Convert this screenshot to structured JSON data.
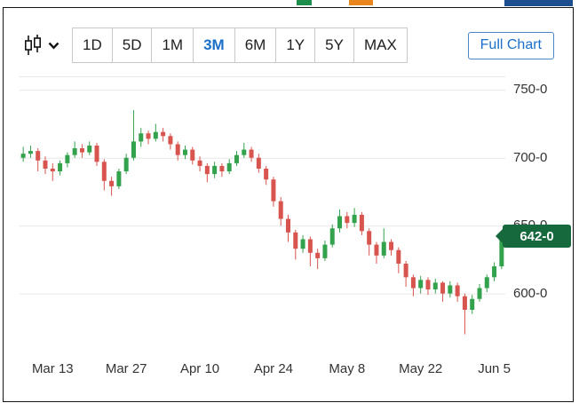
{
  "colors": {
    "up_candle": "#33a24c",
    "down_candle": "#d8544e",
    "accent_blue": "#1a6fc9",
    "badge_bg": "#15693d",
    "grid": "#e7e7e7",
    "axis_text": "#333333",
    "frame_border": "#141414",
    "button_border": "#c8c8c8"
  },
  "icons": {
    "chart_type": "candlestick-icon",
    "dropdown": "chevron-down-icon"
  },
  "cropped_fragments": [
    {
      "name": "green-fragment",
      "color": "#1e8e4c"
    },
    {
      "name": "orange-fragment",
      "color": "#e8861d"
    },
    {
      "name": "blue-fragment",
      "color": "#1d4f90"
    }
  ],
  "toolbar": {
    "ranges": [
      "1D",
      "5D",
      "1M",
      "3M",
      "6M",
      "1Y",
      "5Y",
      "MAX"
    ],
    "selected_range": "3M",
    "full_chart_label": "Full Chart"
  },
  "chart_data": {
    "type": "candlestick",
    "title": "",
    "xlabel": "",
    "ylabel": "",
    "grid": true,
    "legend": false,
    "x_ticks": [
      "Mar 13",
      "Mar 27",
      "Apr 10",
      "Apr 24",
      "May 8",
      "May 22",
      "Jun 5"
    ],
    "x_tick_indices": [
      4,
      14,
      24,
      34,
      44,
      54,
      64
    ],
    "y_ticks": [
      {
        "label": "750-0",
        "value": 750
      },
      {
        "label": "700-0",
        "value": 700
      },
      {
        "label": "650-0",
        "value": 650
      },
      {
        "label": "600-0",
        "value": 600
      }
    ],
    "ylim": [
      554,
      760
    ],
    "last_price": {
      "label": "642-0",
      "value": 642
    },
    "ohlc": [
      [
        700,
        708,
        697,
        703
      ],
      [
        703,
        709,
        700,
        705
      ],
      [
        705,
        707,
        690,
        698
      ],
      [
        698,
        701,
        688,
        692
      ],
      [
        692,
        696,
        683,
        690
      ],
      [
        690,
        698,
        687,
        696
      ],
      [
        696,
        704,
        693,
        702
      ],
      [
        702,
        712,
        700,
        707
      ],
      [
        707,
        710,
        700,
        704
      ],
      [
        704,
        712,
        702,
        709
      ],
      [
        709,
        711,
        694,
        697
      ],
      [
        697,
        699,
        676,
        683
      ],
      [
        683,
        686,
        672,
        679
      ],
      [
        679,
        692,
        677,
        690
      ],
      [
        690,
        703,
        688,
        700
      ],
      [
        700,
        735,
        698,
        712
      ],
      [
        712,
        722,
        708,
        718
      ],
      [
        718,
        720,
        710,
        714
      ],
      [
        714,
        725,
        712,
        719
      ],
      [
        719,
        722,
        712,
        716
      ],
      [
        716,
        718,
        706,
        710
      ],
      [
        710,
        712,
        698,
        702
      ],
      [
        702,
        709,
        699,
        706
      ],
      [
        706,
        708,
        695,
        698
      ],
      [
        698,
        701,
        690,
        694
      ],
      [
        694,
        696,
        682,
        688
      ],
      [
        688,
        697,
        685,
        694
      ],
      [
        694,
        696,
        686,
        690
      ],
      [
        690,
        699,
        688,
        696
      ],
      [
        696,
        705,
        694,
        702
      ],
      [
        702,
        711,
        700,
        706
      ],
      [
        706,
        708,
        697,
        700
      ],
      [
        700,
        703,
        689,
        692
      ],
      [
        692,
        694,
        680,
        684
      ],
      [
        684,
        686,
        664,
        668
      ],
      [
        668,
        671,
        650,
        655
      ],
      [
        655,
        658,
        638,
        645
      ],
      [
        645,
        647,
        625,
        633
      ],
      [
        633,
        643,
        630,
        640
      ],
      [
        640,
        642,
        620,
        630
      ],
      [
        630,
        633,
        618,
        626
      ],
      [
        626,
        639,
        624,
        636
      ],
      [
        636,
        651,
        634,
        648
      ],
      [
        648,
        662,
        645,
        657
      ],
      [
        657,
        660,
        648,
        652
      ],
      [
        652,
        663,
        649,
        658
      ],
      [
        658,
        660,
        643,
        646
      ],
      [
        646,
        648,
        628,
        636
      ],
      [
        636,
        638,
        622,
        628
      ],
      [
        628,
        648,
        626,
        638
      ],
      [
        638,
        640,
        628,
        632
      ],
      [
        632,
        634,
        615,
        622
      ],
      [
        622,
        624,
        605,
        612
      ],
      [
        612,
        614,
        598,
        604
      ],
      [
        604,
        613,
        600,
        610
      ],
      [
        610,
        612,
        599,
        603
      ],
      [
        603,
        611,
        600,
        608
      ],
      [
        608,
        609,
        594,
        600
      ],
      [
        600,
        609,
        597,
        606
      ],
      [
        606,
        608,
        594,
        598
      ],
      [
        598,
        600,
        570,
        588
      ],
      [
        588,
        599,
        585,
        596
      ],
      [
        596,
        607,
        594,
        604
      ],
      [
        604,
        614,
        601,
        612
      ],
      [
        612,
        623,
        609,
        620
      ],
      [
        620,
        645,
        618,
        642
      ]
    ]
  }
}
